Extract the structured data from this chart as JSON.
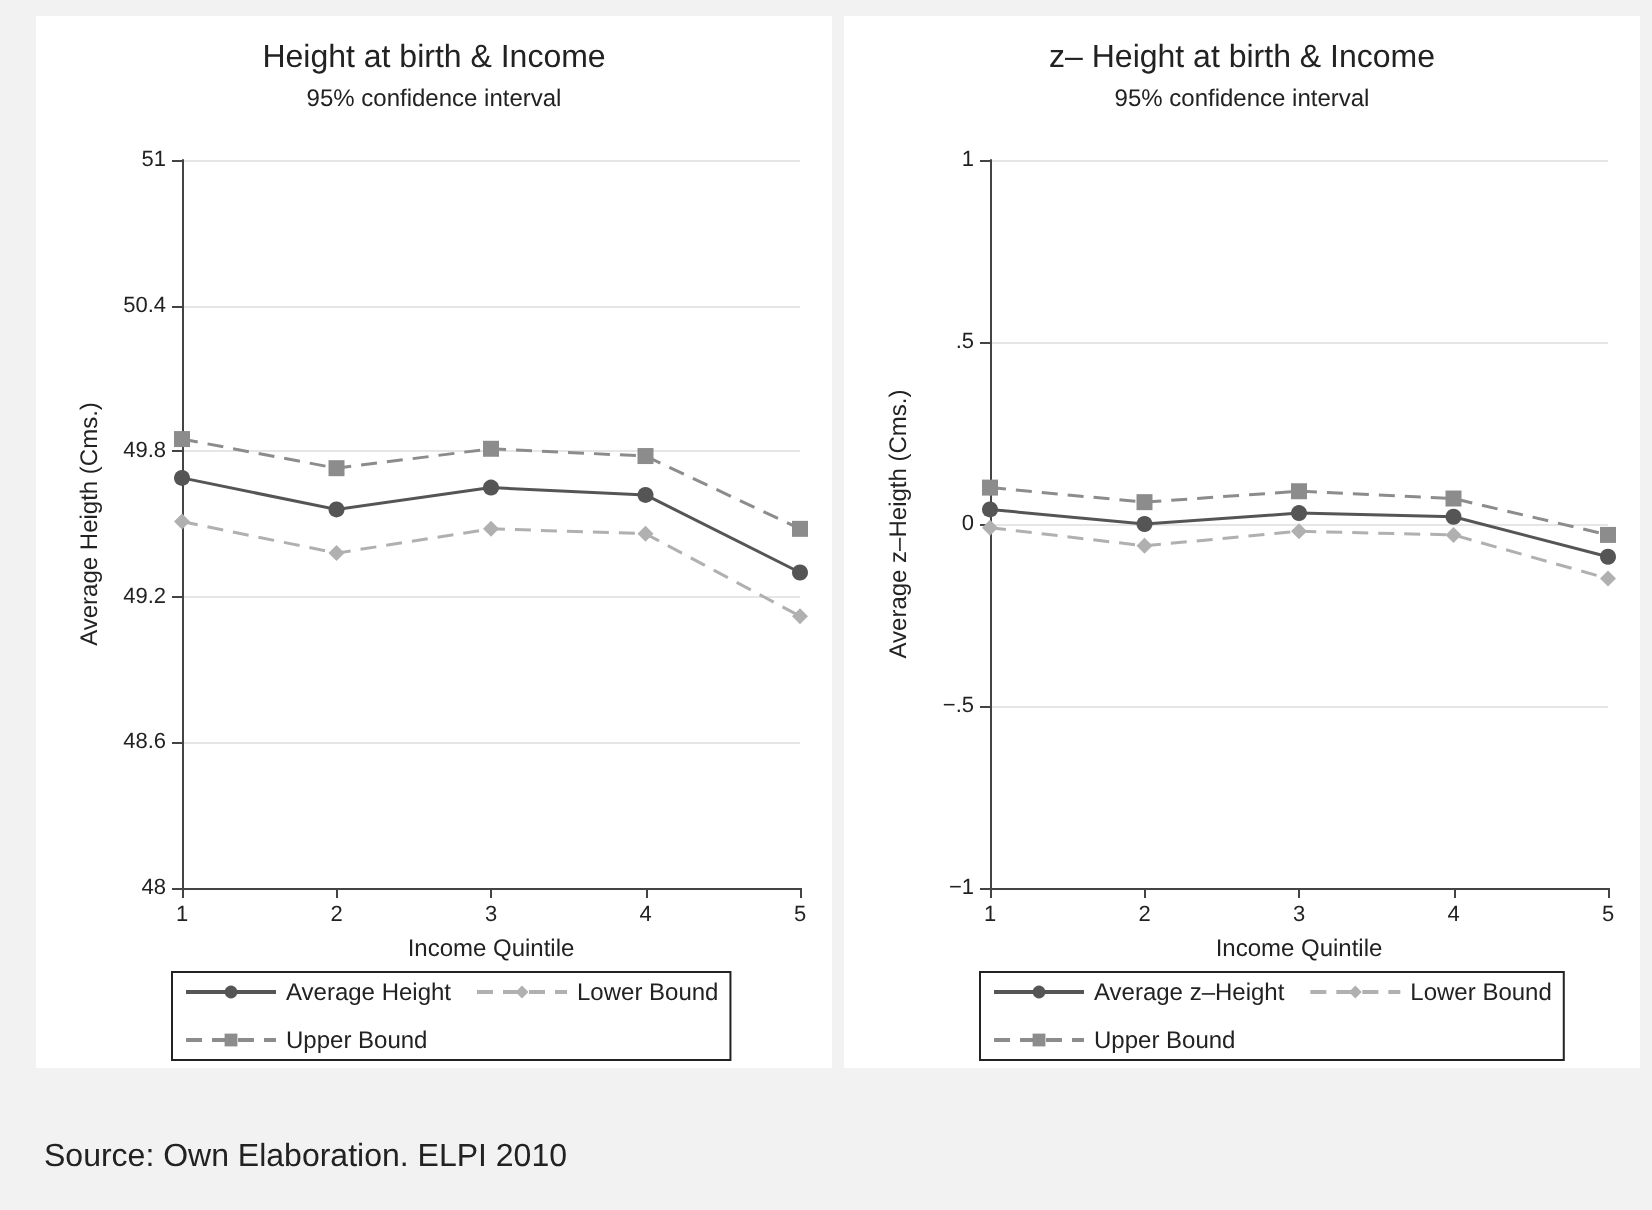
{
  "chart_data": [
    {
      "type": "line",
      "title": "Height at birth & Income",
      "subtitle": "95% confidence interval",
      "xlabel": "Income Quintile",
      "ylabel": "Average Heigth (Cms.)",
      "categories": [
        "1",
        "2",
        "3",
        "4",
        "5"
      ],
      "series": [
        {
          "name": "Average Height",
          "color": "#555555",
          "marker": "circle",
          "line_style": "solid",
          "values": [
            49.69,
            49.56,
            49.65,
            49.62,
            49.3
          ]
        },
        {
          "name": "Lower Bound",
          "color": "#b0b0b0",
          "marker": "diamond",
          "line_style": "dashed",
          "values": [
            49.51,
            49.38,
            49.48,
            49.46,
            49.12
          ]
        },
        {
          "name": "Upper Bound",
          "color": "#8c8c8c",
          "marker": "square",
          "line_style": "dashed",
          "values": [
            49.85,
            49.73,
            49.81,
            49.78,
            49.48
          ]
        }
      ],
      "ylim": [
        48,
        51
      ],
      "yticks": [
        48,
        48.6,
        49.2,
        49.8,
        50.4,
        51
      ],
      "grid": "y",
      "legend": "bottom",
      "annotations": [
        "Source: Own Elaboration. ELPI 2010"
      ]
    },
    {
      "type": "line",
      "title": "z– Height at birth & Income",
      "subtitle": "95% confidence interval",
      "xlabel": "Income Quintile",
      "ylabel": "Average z–Heigth (Cms.)",
      "categories": [
        "1",
        "2",
        "3",
        "4",
        "5"
      ],
      "series": [
        {
          "name": "Average z–Height",
          "color": "#555555",
          "marker": "circle",
          "line_style": "solid",
          "values": [
            0.04,
            0.0,
            0.03,
            0.02,
            -0.09
          ]
        },
        {
          "name": "Lower Bound",
          "color": "#b0b0b0",
          "marker": "diamond",
          "line_style": "dashed",
          "values": [
            -0.01,
            -0.06,
            -0.02,
            -0.03,
            -0.15
          ]
        },
        {
          "name": "Upper Bound",
          "color": "#8c8c8c",
          "marker": "square",
          "line_style": "dashed",
          "values": [
            0.1,
            0.06,
            0.09,
            0.07,
            -0.03
          ]
        }
      ],
      "ylim": [
        -1,
        1
      ],
      "yticks": [
        {
          "value": -1,
          "label": "−1"
        },
        {
          "value": -0.5,
          "label": "−.5"
        },
        0,
        {
          "value": 0.5,
          "label": ".5"
        },
        1
      ],
      "grid": "y",
      "legend": "bottom"
    }
  ]
}
